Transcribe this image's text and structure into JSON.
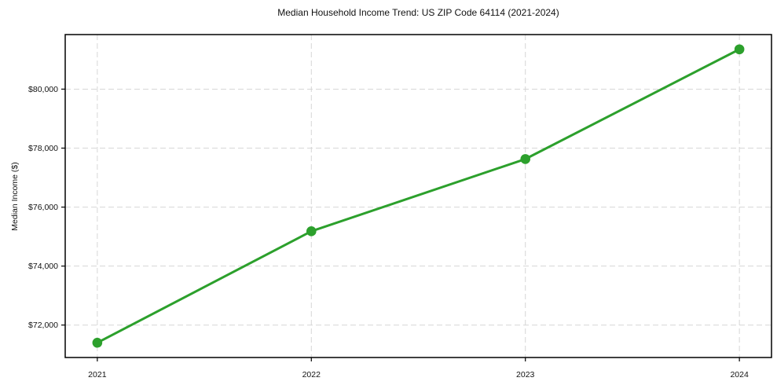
{
  "chart_data": {
    "type": "line",
    "title": "Median Household Income Trend: US ZIP Code 64114 (2021-2024)",
    "xlabel": "",
    "ylabel": "Median Income ($)",
    "x": [
      2021,
      2022,
      2023,
      2024
    ],
    "series": [
      {
        "name": "Median Household Income",
        "values": [
          71400,
          75180,
          77630,
          81350
        ],
        "color": "#2ca02c",
        "marker": "circle"
      }
    ],
    "xticks": {
      "values": [
        2021,
        2022,
        2023,
        2024
      ],
      "labels": [
        "2021",
        "2022",
        "2023",
        "2024"
      ]
    },
    "yticks": {
      "values": [
        72000,
        74000,
        76000,
        78000,
        80000
      ],
      "labels": [
        "$72,000",
        "$74,000",
        "$76,000",
        "$78,000",
        "$80,000"
      ]
    },
    "xlim": [
      2020.85,
      2024.15
    ],
    "ylim": [
      70900,
      81850
    ],
    "grid": {
      "visible": true,
      "style": "dashed",
      "axes": "both"
    },
    "legend": "none",
    "colors": {
      "line": "#2ca02c",
      "grid": "#d6d6d6",
      "spine": "#000000",
      "background": "#ffffff",
      "text": "#111111"
    }
  }
}
